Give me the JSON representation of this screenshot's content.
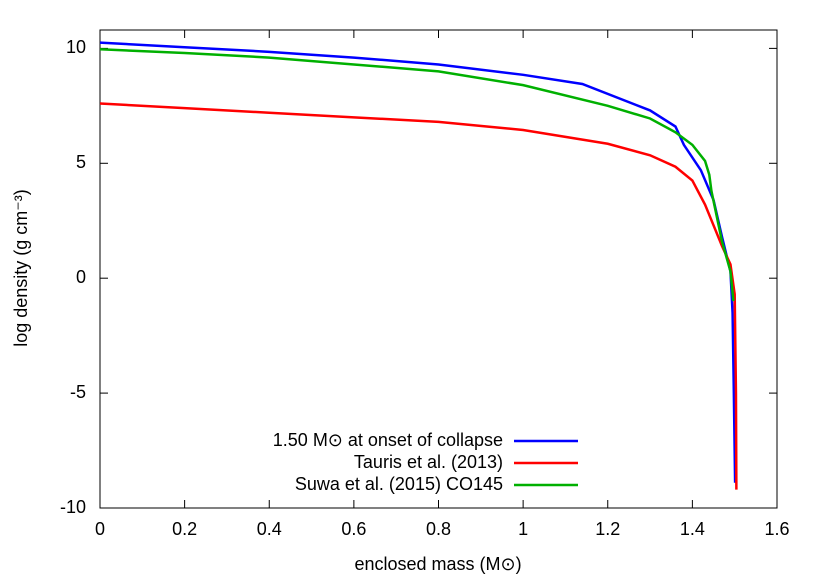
{
  "chart_data": {
    "type": "line",
    "x_label": "enclosed mass (M⊙)",
    "y_label": "log density (g cm⁻³)",
    "xlim": [
      0,
      1.6
    ],
    "xticks": [
      0,
      0.2,
      0.4,
      0.6,
      0.8,
      1,
      1.2,
      1.4,
      1.6
    ],
    "ylim": [
      -10,
      10.8
    ],
    "yticks": [
      -10,
      -5,
      0,
      5,
      10
    ],
    "legend": "lower center",
    "series": [
      {
        "name": "1.50 M⊙ at onset of collapse",
        "color": "#0000ff",
        "x": [
          0,
          0.2,
          0.4,
          0.6,
          0.8,
          1.0,
          1.14,
          1.3,
          1.36,
          1.38,
          1.42,
          1.45,
          1.47,
          1.49,
          1.495,
          1.498,
          1.501
        ],
        "values": [
          10.25,
          10.05,
          9.85,
          9.6,
          9.3,
          8.85,
          8.45,
          7.3,
          6.6,
          5.8,
          4.7,
          3.4,
          1.8,
          0.3,
          -1.5,
          -5,
          -8.9
        ]
      },
      {
        "name": "Tauris et al. (2013)",
        "color": "#ff0000",
        "x": [
          0,
          0.2,
          0.4,
          0.6,
          0.8,
          1.0,
          1.2,
          1.3,
          1.36,
          1.4,
          1.43,
          1.45,
          1.47,
          1.49,
          1.5,
          1.503,
          1.504
        ],
        "values": [
          7.6,
          7.4,
          7.2,
          7.0,
          6.8,
          6.45,
          5.85,
          5.35,
          4.85,
          4.25,
          3.2,
          2.3,
          1.4,
          0.6,
          -0.7,
          -5,
          -9.2
        ]
      },
      {
        "name": "Suwa et al. (2015) CO145",
        "color": "#00b000",
        "x": [
          0,
          0.2,
          0.4,
          0.6,
          0.8,
          1.0,
          1.2,
          1.3,
          1.36,
          1.4,
          1.43,
          1.44,
          1.445,
          1.47,
          1.49,
          1.497
        ],
        "values": [
          9.96,
          9.8,
          9.6,
          9.3,
          9.0,
          8.4,
          7.5,
          6.95,
          6.35,
          5.8,
          5.1,
          4.5,
          3.8,
          1.6,
          0.3,
          -1
        ]
      }
    ]
  }
}
